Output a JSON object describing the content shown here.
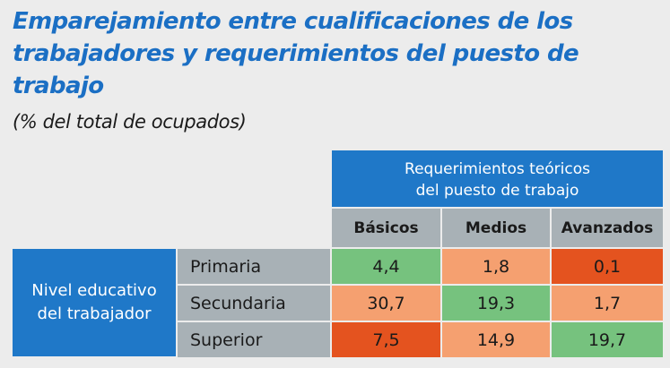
{
  "title": "Emparejamiento entre cualificaciones de los trabajadores y requerimientos del puesto de trabajo",
  "subtitle": "(% del total de ocupados)",
  "table": {
    "column_group_label": [
      "Requerimientos teóricos",
      "del puesto de trabajo"
    ],
    "columns": [
      "Básicos",
      "Medios",
      "Avanzados"
    ],
    "row_group_label": [
      "Nivel educativo",
      "del trabajador"
    ],
    "rows": [
      {
        "label": "Primaria",
        "values": [
          "4,4",
          "1,8",
          "0,1"
        ],
        "colors": [
          "#76c27e",
          "#f5a070",
          "#e4531f"
        ]
      },
      {
        "label": "Secundaria",
        "values": [
          "30,7",
          "19,3",
          "1,7"
        ],
        "colors": [
          "#f5a070",
          "#76c27e",
          "#f5a070"
        ]
      },
      {
        "label": "Superior",
        "values": [
          "7,5",
          "14,9",
          "19,7"
        ],
        "colors": [
          "#e4531f",
          "#f5a070",
          "#76c27e"
        ]
      }
    ]
  },
  "colors": {
    "title": "#1b6fc4",
    "header_blue": "#1f78c8",
    "header_gray": "#a8b1b6",
    "background": "#ececec"
  }
}
